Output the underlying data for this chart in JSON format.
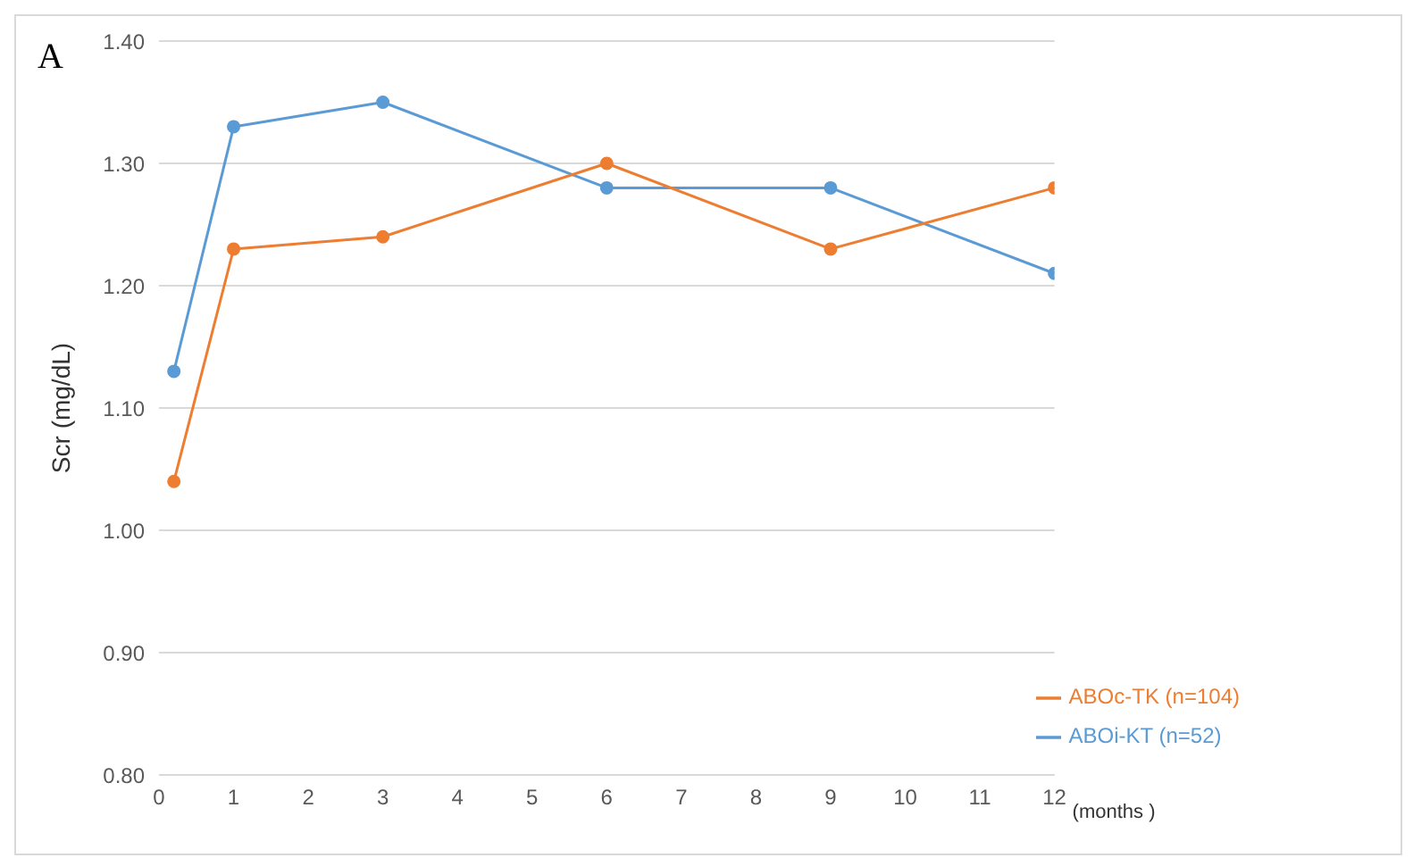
{
  "chart_data": {
    "type": "line",
    "ylabel": "Scr (mg/dL)",
    "xlabel": "(months )",
    "annotations": [
      "A"
    ],
    "x": [
      0.2,
      1,
      3,
      6,
      9,
      12
    ],
    "series": [
      {
        "name": "ABOi-KT (n=52)",
        "color": "#5b9bd5",
        "values": [
          1.13,
          1.33,
          1.35,
          1.28,
          1.28,
          1.21
        ]
      },
      {
        "name": "ABOc-TK (n=104)",
        "color": "#ed7d31",
        "values": [
          1.04,
          1.23,
          1.24,
          1.3,
          1.23,
          1.28
        ]
      }
    ],
    "xlim": [
      0,
      12
    ],
    "xticks": [
      0,
      1,
      2,
      3,
      4,
      5,
      6,
      7,
      8,
      9,
      10,
      11,
      12
    ],
    "ylim": [
      0.8,
      1.4
    ],
    "yticks": [
      {
        "value": 0.8,
        "label": "0.80"
      },
      {
        "value": 0.9,
        "label": "0.90"
      },
      {
        "value": 1.0,
        "label": "1.00"
      },
      {
        "value": 1.1,
        "label": "1.10"
      },
      {
        "value": 1.2,
        "label": "1.20"
      },
      {
        "value": 1.3,
        "label": "1.30"
      },
      {
        "value": 1.4,
        "label": "1.40"
      }
    ],
    "grid": "y",
    "legend": "bottom right",
    "marker": "circle",
    "line_style": "solid"
  }
}
